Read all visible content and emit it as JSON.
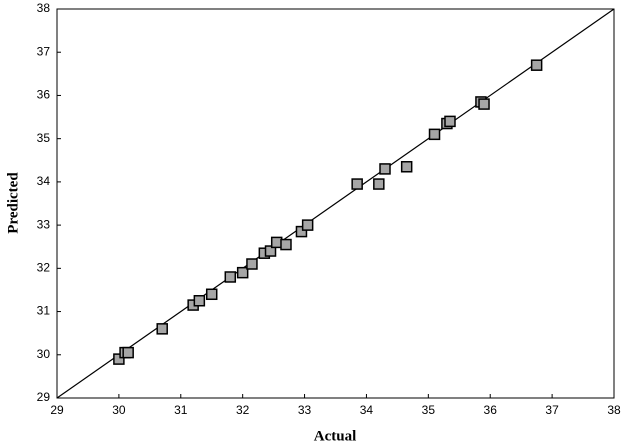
{
  "chart_data": {
    "type": "scatter",
    "x_label": "Actual",
    "y_label": "Predicted",
    "xlim": [
      29,
      38
    ],
    "ylim": [
      29,
      38
    ],
    "xticks": [
      29,
      30,
      31,
      32,
      33,
      34,
      35,
      36,
      37,
      38
    ],
    "yticks": [
      29,
      30,
      31,
      32,
      33,
      34,
      35,
      36,
      37,
      38
    ],
    "grid": false,
    "marker_color": "#a6a6a6",
    "line_color": "#000000",
    "x": [
      30.0,
      30.1,
      30.15,
      30.7,
      31.2,
      31.3,
      31.5,
      31.8,
      32.0,
      32.15,
      32.35,
      32.45,
      32.55,
      32.7,
      32.95,
      33.05,
      33.85,
      34.2,
      34.3,
      34.65,
      35.1,
      35.3,
      35.35,
      35.85,
      35.9,
      36.75
    ],
    "values": [
      29.9,
      30.05,
      30.05,
      30.6,
      31.15,
      31.25,
      31.4,
      31.8,
      31.9,
      32.1,
      32.35,
      32.4,
      32.6,
      32.55,
      32.85,
      33.0,
      33.95,
      33.95,
      34.3,
      34.35,
      35.1,
      35.35,
      35.4,
      35.85,
      35.8,
      36.7
    ],
    "fit_line": {
      "x": [
        29,
        38
      ],
      "y": [
        29,
        38
      ]
    }
  }
}
